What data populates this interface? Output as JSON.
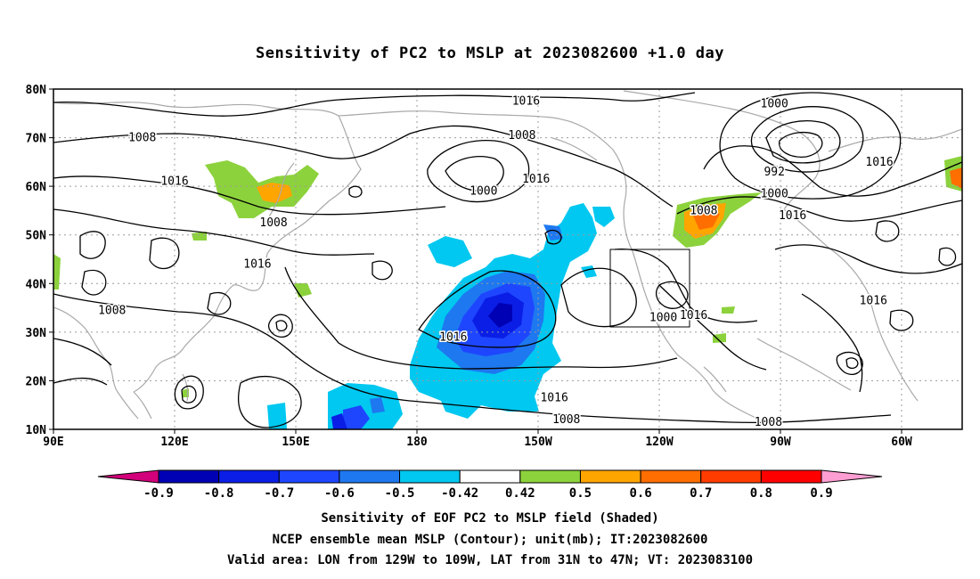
{
  "title": "Sensitivity of PC2 to MSLP at 2023082600 +1.0 day",
  "lat_labels": [
    "80N",
    "70N",
    "60N",
    "50N",
    "40N",
    "30N",
    "20N",
    "10N"
  ],
  "lon_labels": [
    "90E",
    "120E",
    "150E",
    "180",
    "150W",
    "120W",
    "90W",
    "60W"
  ],
  "colorbar": {
    "labels": [
      "-0.9",
      "-0.8",
      "-0.7",
      "-0.6",
      "-0.5",
      "-0.42",
      "0.42",
      "0.5",
      "0.6",
      "0.7",
      "0.8",
      "0.9"
    ],
    "colors": [
      "#d2007a",
      "#0000b4",
      "#0a1ee6",
      "#1e46ff",
      "#1e78f0",
      "#00c8f0",
      "#ffffff",
      "#8cd23c",
      "#ffa500",
      "#ff6e00",
      "#ff3c00",
      "#ff0000",
      "#ff9ed2"
    ]
  },
  "contour_labels": [
    {
      "text": "1016",
      "lon": 207.0,
      "lat": 77.5
    },
    {
      "text": "1008",
      "lon": 112.0,
      "lat": 70.0
    },
    {
      "text": "1008",
      "lon": 206.0,
      "lat": 70.5
    },
    {
      "text": "1016",
      "lon": 120.0,
      "lat": 61.0
    },
    {
      "text": "1000",
      "lon": 196.5,
      "lat": 59.0
    },
    {
      "text": "1016",
      "lon": 209.5,
      "lat": 61.5
    },
    {
      "text": "1008",
      "lon": 144.5,
      "lat": 52.5
    },
    {
      "text": "1016",
      "lon": 140.5,
      "lat": 44.0
    },
    {
      "text": "1008",
      "lon": 104.5,
      "lat": 34.5
    },
    {
      "text": "1016",
      "lon": 189.0,
      "lat": 29.0
    },
    {
      "text": "1016",
      "lon": 214.0,
      "lat": 16.5
    },
    {
      "text": "1008",
      "lon": 217.0,
      "lat": 12.0
    },
    {
      "text": "1000",
      "lon": 268.5,
      "lat": 77.0
    },
    {
      "text": "992",
      "lon": 268.5,
      "lat": 63.0
    },
    {
      "text": "1000",
      "lon": 268.5,
      "lat": 58.5
    },
    {
      "text": "1008",
      "lon": 251.0,
      "lat": 55.0
    },
    {
      "text": "1016",
      "lon": 273.0,
      "lat": 54.0
    },
    {
      "text": "1016",
      "lon": 294.5,
      "lat": 65.0
    },
    {
      "text": "1016",
      "lon": 293.0,
      "lat": 36.5
    },
    {
      "text": "1000",
      "lon": 241.0,
      "lat": 33.0
    },
    {
      "text": "1016",
      "lon": 248.5,
      "lat": 33.5
    },
    {
      "text": "1008",
      "lon": 267.0,
      "lat": 11.5
    }
  ],
  "footer": {
    "line1": "Sensitivity of EOF PC2 to MSLP field (Shaded)",
    "line2": "NCEP ensemble mean MSLP (Contour); unit(mb); IT:2023082600",
    "line3": "Valid area: LON from 129W to 109W, LAT from 31N to 47N; VT: 2023083100"
  }
}
